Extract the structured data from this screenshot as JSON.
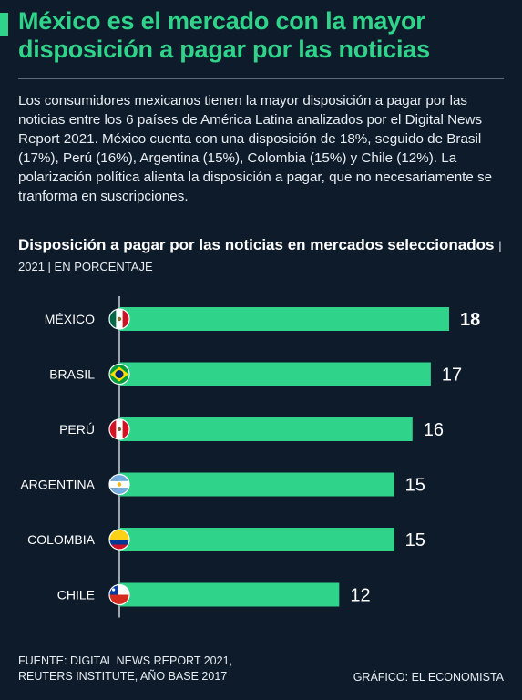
{
  "header": {
    "title": "México es el mercado con la mayor disposición a pagar por las noticias",
    "intro": "Los consumidores mexicanos tienen la mayor disposición a pagar por las noticias entre los 6 países de América Latina analizados por el Digital News Report 2021. México cuenta con una disposición de 18%, seguido de Brasil (17%), Perú (16%), Argentina (15%), Colombia (15%) y Chile (12%). La polarización política alienta la disposición a pagar, que no necesariamente se tranforma en suscripciones."
  },
  "chart_data": {
    "type": "bar",
    "orientation": "horizontal",
    "title": "Disposición a pagar por las noticias en mercados seleccionados",
    "subtitle": "| 2021 | EN PORCENTAJE",
    "categories": [
      "MÉXICO",
      "BRASIL",
      "PERÚ",
      "ARGENTINA",
      "COLOMBIA",
      "CHILE"
    ],
    "values": [
      18,
      17,
      16,
      15,
      15,
      12
    ],
    "xlim": [
      0,
      18
    ],
    "grid": false,
    "legend": "none",
    "highlight_index": 0,
    "icons": [
      "mexico-flag-icon",
      "brazil-flag-icon",
      "peru-flag-icon",
      "argentina-flag-icon",
      "colombia-flag-icon",
      "chile-flag-icon"
    ]
  },
  "footer": {
    "source_line1": "FUENTE: DIGITAL NEWS REPORT 2021,",
    "source_line2": "REUTERS INSTITUTE, AÑO BASE 2017",
    "credit": "GRÁFICO: EL ECONOMISTA"
  },
  "colors": {
    "background": "#0d1b2b",
    "accent": "#2fd38a",
    "bar": "#2fd38a",
    "axis": "#ffffff"
  }
}
